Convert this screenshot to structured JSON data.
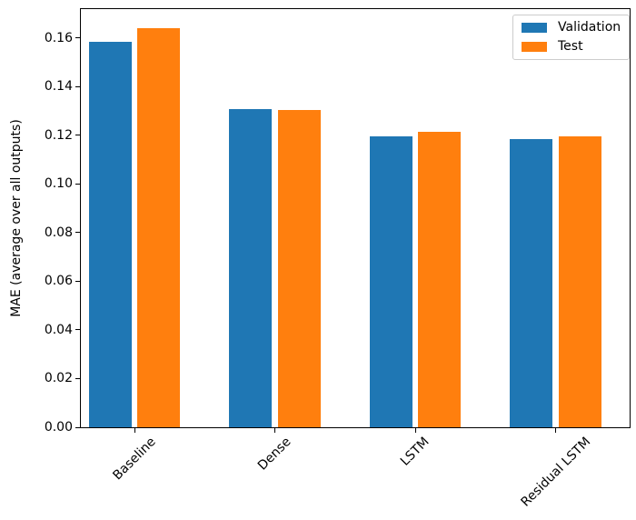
{
  "chart_data": {
    "type": "bar",
    "title": "",
    "xlabel": "",
    "ylabel": "MAE (average over all outputs)",
    "categories": [
      "Baseline",
      "Dense",
      "LSTM",
      "Residual LSTM"
    ],
    "series": [
      {
        "name": "Validation",
        "color": "#1f77b4",
        "values": [
          0.1585,
          0.1306,
          0.1197,
          0.1183
        ]
      },
      {
        "name": "Test",
        "color": "#ff7f0e",
        "values": [
          0.164,
          0.1303,
          0.1213,
          0.1194
        ]
      }
    ],
    "ylim": [
      0,
      0.1722
    ],
    "yticks": [
      0.0,
      0.02,
      0.04,
      0.06,
      0.08,
      0.1,
      0.12,
      0.14,
      0.16
    ],
    "ytick_format_decimals": 2,
    "xtick_rotation_deg": 45,
    "legend_position": "upper right",
    "grid": false,
    "colors": {
      "axis": "#000000",
      "legend_border": "#cccccc",
      "background": "#ffffff"
    }
  }
}
